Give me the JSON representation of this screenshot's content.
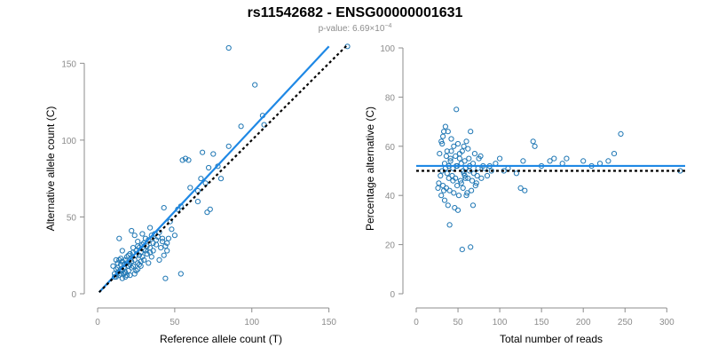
{
  "figure": {
    "title": "rs11542682 - ENSG00000001631",
    "subtitle_prefix": "p-value: 6.69×10",
    "subtitle_exp": "−4"
  },
  "colors": {
    "points": "#1f77b4",
    "fit_line": "#1e88e5",
    "reference_line": "#000000",
    "axis": "#8c8c8c"
  },
  "chart_data": [
    {
      "type": "scatter",
      "xlabel": "Reference allele count (T)",
      "ylabel": "Alternative allele count (C)",
      "xlim": [
        0,
        160
      ],
      "ylim": [
        0,
        160
      ],
      "xticks": [
        0,
        50,
        100,
        150
      ],
      "yticks": [
        0,
        50,
        100,
        150
      ],
      "fit_line": {
        "x": [
          1,
          150
        ],
        "y": [
          1,
          161
        ]
      },
      "reference_line": {
        "x": [
          1,
          162
        ],
        "y": [
          1,
          162
        ]
      },
      "points": [
        [
          85,
          160
        ],
        [
          162,
          161
        ],
        [
          102,
          136
        ],
        [
          107,
          116
        ],
        [
          108,
          110
        ],
        [
          93,
          109
        ],
        [
          85,
          96
        ],
        [
          75,
          91
        ],
        [
          68,
          92
        ],
        [
          72,
          82
        ],
        [
          78,
          83
        ],
        [
          55,
          87
        ],
        [
          57,
          88
        ],
        [
          59,
          87
        ],
        [
          67,
          75
        ],
        [
          70,
          72
        ],
        [
          60,
          69
        ],
        [
          65,
          67
        ],
        [
          80,
          75
        ],
        [
          65,
          60
        ],
        [
          71,
          53
        ],
        [
          73,
          55
        ],
        [
          52,
          55
        ],
        [
          54,
          57
        ],
        [
          47,
          47
        ],
        [
          43,
          56
        ],
        [
          54,
          13
        ],
        [
          44,
          10
        ],
        [
          37,
          39
        ],
        [
          38,
          35
        ],
        [
          34,
          43
        ],
        [
          34,
          30
        ],
        [
          33,
          35
        ],
        [
          40,
          40
        ],
        [
          42,
          36
        ],
        [
          45,
          33
        ],
        [
          29,
          32
        ],
        [
          27,
          30
        ],
        [
          28,
          27
        ],
        [
          25,
          25
        ],
        [
          31,
          28
        ],
        [
          30,
          22
        ],
        [
          26,
          20
        ],
        [
          24,
          38
        ],
        [
          22,
          41
        ],
        [
          14,
          36
        ],
        [
          16,
          28
        ],
        [
          15,
          23
        ],
        [
          13,
          20
        ],
        [
          12,
          16
        ],
        [
          15,
          13
        ],
        [
          18,
          14
        ],
        [
          20,
          18
        ],
        [
          22,
          21
        ],
        [
          17,
          19
        ],
        [
          19,
          24
        ],
        [
          23,
          27
        ],
        [
          26,
          31
        ],
        [
          30,
          33
        ],
        [
          32,
          26
        ],
        [
          35,
          24
        ],
        [
          28,
          18
        ],
        [
          25,
          15
        ],
        [
          21,
          12
        ],
        [
          18,
          11
        ],
        [
          16,
          10
        ],
        [
          14,
          12
        ],
        [
          12,
          11
        ],
        [
          20,
          15
        ],
        [
          24,
          22
        ],
        [
          27,
          25
        ],
        [
          33,
          20
        ],
        [
          36,
          28
        ],
        [
          38,
          32
        ],
        [
          41,
          30
        ],
        [
          43,
          25
        ],
        [
          45,
          28
        ],
        [
          40,
          22
        ],
        [
          29,
          39
        ],
        [
          35,
          38
        ],
        [
          31,
          36
        ],
        [
          26,
          34
        ],
        [
          23,
          30
        ],
        [
          21,
          26
        ],
        [
          19,
          20
        ],
        [
          17,
          17
        ],
        [
          15,
          16
        ],
        [
          13,
          14
        ],
        [
          11,
          13
        ],
        [
          10,
          18
        ],
        [
          14,
          22
        ],
        [
          16,
          15
        ],
        [
          18,
          22
        ],
        [
          20,
          25
        ],
        [
          22,
          17
        ],
        [
          24,
          13
        ],
        [
          26,
          16
        ],
        [
          28,
          21
        ],
        [
          30,
          29
        ],
        [
          32,
          31
        ],
        [
          34,
          27
        ],
        [
          36,
          33
        ],
        [
          39,
          37
        ],
        [
          42,
          34
        ],
        [
          44,
          31
        ],
        [
          46,
          36
        ],
        [
          48,
          42
        ],
        [
          50,
          38
        ],
        [
          25,
          28
        ],
        [
          21,
          19
        ],
        [
          19,
          12
        ],
        [
          17,
          13
        ],
        [
          13,
          17
        ],
        [
          11,
          11
        ],
        [
          12,
          22
        ],
        [
          15,
          19
        ],
        [
          16,
          21
        ],
        [
          23,
          18
        ],
        [
          27,
          19
        ],
        [
          29,
          24
        ]
      ]
    },
    {
      "type": "scatter",
      "xlabel": "Total number of reads",
      "ylabel": "Percentage alternative (C)",
      "xlim": [
        0,
        322
      ],
      "ylim": [
        0,
        100
      ],
      "xticks": [
        0,
        50,
        100,
        150,
        200,
        250,
        300
      ],
      "yticks": [
        0,
        20,
        40,
        60,
        80,
        100
      ],
      "fit_line": {
        "x": [
          0,
          322
        ],
        "y": [
          52,
          52
        ]
      },
      "reference_line": {
        "x": [
          0,
          322
        ],
        "y": [
          50,
          50
        ]
      },
      "points": [
        [
          48,
          75
        ],
        [
          33,
          66
        ],
        [
          35,
          68
        ],
        [
          38,
          66
        ],
        [
          30,
          62
        ],
        [
          32,
          64
        ],
        [
          42,
          63
        ],
        [
          45,
          60
        ],
        [
          50,
          61
        ],
        [
          55,
          58
        ],
        [
          60,
          62
        ],
        [
          65,
          66
        ],
        [
          57,
          60
        ],
        [
          62,
          59
        ],
        [
          28,
          57
        ],
        [
          36,
          56
        ],
        [
          41,
          55
        ],
        [
          52,
          57
        ],
        [
          58,
          54
        ],
        [
          63,
          55
        ],
        [
          70,
          57
        ],
        [
          75,
          55
        ],
        [
          34,
          53
        ],
        [
          39,
          52
        ],
        [
          44,
          51
        ],
        [
          49,
          52
        ],
        [
          54,
          53
        ],
        [
          59,
          51
        ],
        [
          64,
          50
        ],
        [
          69,
          49
        ],
        [
          74,
          51
        ],
        [
          80,
          52
        ],
        [
          31,
          50
        ],
        [
          37,
          49
        ],
        [
          43,
          48
        ],
        [
          47,
          47
        ],
        [
          53,
          46
        ],
        [
          58,
          48
        ],
        [
          62,
          47
        ],
        [
          67,
          46
        ],
        [
          72,
          45
        ],
        [
          27,
          45
        ],
        [
          32,
          44
        ],
        [
          36,
          43
        ],
        [
          40,
          42
        ],
        [
          45,
          41
        ],
        [
          51,
          40
        ],
        [
          56,
          43
        ],
        [
          61,
          41
        ],
        [
          66,
          42
        ],
        [
          71,
          44
        ],
        [
          30,
          40
        ],
        [
          34,
          38
        ],
        [
          38,
          36
        ],
        [
          46,
          35
        ],
        [
          50,
          34
        ],
        [
          60,
          40
        ],
        [
          68,
          36
        ],
        [
          55,
          18
        ],
        [
          65,
          19
        ],
        [
          40,
          28
        ],
        [
          100,
          55
        ],
        [
          105,
          50
        ],
        [
          110,
          51
        ],
        [
          120,
          49
        ],
        [
          125,
          43
        ],
        [
          130,
          42
        ],
        [
          128,
          54
        ],
        [
          140,
          62
        ],
        [
          142,
          60
        ],
        [
          150,
          52
        ],
        [
          160,
          54
        ],
        [
          165,
          55
        ],
        [
          175,
          53
        ],
        [
          180,
          55
        ],
        [
          200,
          54
        ],
        [
          210,
          52
        ],
        [
          220,
          53
        ],
        [
          230,
          54
        ],
        [
          237,
          57
        ],
        [
          245,
          65
        ],
        [
          316,
          50
        ],
        [
          90,
          50
        ],
        [
          95,
          53
        ],
        [
          85,
          48
        ],
        [
          78,
          47
        ],
        [
          42,
          58
        ],
        [
          47,
          56
        ],
        [
          52,
          55
        ],
        [
          57,
          49
        ],
        [
          44,
          46
        ],
        [
          39,
          47
        ],
        [
          35,
          51
        ],
        [
          29,
          48
        ],
        [
          26,
          43
        ],
        [
          33,
          42
        ],
        [
          49,
          44
        ],
        [
          54,
          45
        ],
        [
          59,
          47
        ],
        [
          64,
          52
        ],
        [
          68,
          53
        ],
        [
          73,
          48
        ],
        [
          77,
          56
        ],
        [
          82,
          51
        ],
        [
          88,
          52
        ],
        [
          48,
          52
        ],
        [
          41,
          54
        ],
        [
          37,
          58
        ],
        [
          31,
          61
        ],
        [
          56,
          50
        ]
      ]
    }
  ]
}
